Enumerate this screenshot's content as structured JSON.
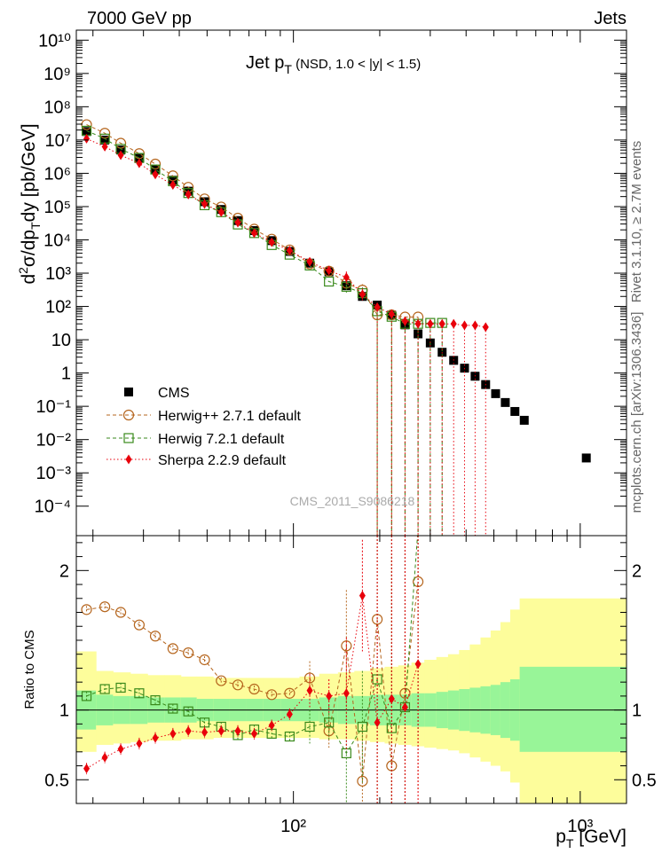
{
  "header": {
    "left": "7000 GeV pp",
    "right": "Jets"
  },
  "side_labels": {
    "rivet": "Rivet 3.1.10, ≥ 2.7M events",
    "mcplots": "mcplots.cern.ch [arXiv:1306.3436]"
  },
  "watermark": "CMS_2011_S9086218",
  "main_title": {
    "main": "Jet p",
    "sub": "T",
    "tail": " (NSD, 1.0 < |y| < 1.5)"
  },
  "colors": {
    "cms": "#000000",
    "herwigpp": "#b5651d",
    "herwig7": "#3a8a1c",
    "sherpa": "#e8000b",
    "band_inner": "#98f598",
    "band_outer": "#fdfd9b"
  },
  "chart_data": [
    {
      "type": "scatter",
      "panel": "main",
      "ylabel": "d²σ/dp_T dy [pb/GeV]",
      "xscale": "log",
      "yscale": "log",
      "xlim": [
        17.5,
        1450
      ],
      "ylim": [
        1.3e-05,
        20000000000
      ],
      "legend": {
        "position": "center-left",
        "entries": [
          "CMS",
          "Herwig++ 2.7.1 default",
          "Herwig 7.2.1 default",
          "Sherpa 2.2.9 default"
        ]
      },
      "series": [
        {
          "name": "CMS",
          "marker": "filled-square",
          "x": [
            19,
            22,
            25,
            29,
            33,
            38,
            43,
            49,
            56,
            64,
            73,
            84,
            97,
            114,
            133,
            153,
            174,
            196,
            220,
            245,
            272,
            300,
            330,
            362,
            395,
            430,
            468,
            507,
            548,
            592,
            638,
            1050
          ],
          "y": [
            18000000,
            10000000,
            5000000,
            2800000,
            1300000,
            620000,
            290000,
            140000,
            82000,
            38000,
            19000,
            9500,
            4500,
            2000,
            1100,
            420,
            200,
            110,
            55,
            28,
            15,
            8,
            4.2,
            2.4,
            1.4,
            0.8,
            0.45,
            0.24,
            0.13,
            0.07,
            0.038,
            0.0028
          ]
        },
        {
          "name": "Herwig++ 2.7.1 default",
          "marker": "open-circle",
          "x": [
            19,
            22,
            25,
            29,
            33,
            38,
            43,
            49,
            56,
            64,
            73,
            84,
            97,
            114,
            133,
            153,
            174,
            196,
            220,
            245,
            272
          ],
          "y": [
            29000000,
            16000000,
            8000000,
            3900000,
            1900000,
            840000,
            380000,
            170000,
            97000,
            45000,
            21000,
            10500,
            5000,
            1900,
            1150,
            500,
            310,
            56,
            56,
            48,
            48
          ]
        },
        {
          "name": "Herwig 7.2.1 default",
          "marker": "open-square",
          "x": [
            19,
            22,
            25,
            29,
            33,
            38,
            43,
            49,
            56,
            64,
            73,
            84,
            97,
            114,
            133,
            153,
            174,
            196,
            220,
            245,
            272,
            300,
            330
          ],
          "y": [
            19000000,
            11000000,
            5400000,
            2900000,
            1300000,
            580000,
            255000,
            110000,
            68000,
            29000,
            16000,
            7000,
            3600,
            1700,
            560,
            390,
            250,
            72,
            49,
            30,
            30,
            32,
            32
          ]
        },
        {
          "name": "Sherpa 2.2.9 default",
          "marker": "filled-diamond",
          "x": [
            19,
            22,
            25,
            29,
            33,
            38,
            43,
            49,
            56,
            64,
            73,
            84,
            97,
            114,
            133,
            153,
            174,
            196,
            220,
            245,
            272,
            300,
            330,
            362,
            395,
            430,
            468
          ],
          "y": [
            11000000,
            6300000,
            3500000,
            2000000,
            920000,
            450000,
            230000,
            120000,
            68000,
            33000,
            16000,
            8500,
            4800,
            2200,
            1200,
            750,
            230,
            95,
            59,
            36,
            30,
            30,
            30,
            30,
            27,
            27,
            24
          ]
        }
      ],
      "yticks": [
        "10⁻⁴",
        "10⁻³",
        "10⁻²",
        "10⁻¹",
        "1",
        "10",
        "10²",
        "10³",
        "10⁴",
        "10⁵",
        "10⁶",
        "10⁷",
        "10⁸",
        "10⁹",
        "10¹⁰"
      ]
    },
    {
      "type": "line",
      "panel": "ratio",
      "ylabel": "Ratio to CMS",
      "xlabel": "p_T [GeV]",
      "xscale": "log",
      "xlim": [
        17.5,
        1450
      ],
      "ylim": [
        0.33,
        2.25
      ],
      "yticks": [
        "0.5",
        "1",
        "2"
      ],
      "xticks": [
        "10²",
        "10³"
      ],
      "series": [
        {
          "name": "Herwig++ 2.7.1 default",
          "marker": "open-circle",
          "x": [
            19,
            22,
            25,
            29,
            33,
            38,
            43,
            49,
            56,
            64,
            73,
            84,
            97,
            114,
            133,
            153,
            174,
            196,
            220,
            245,
            272
          ],
          "y": [
            1.72,
            1.74,
            1.7,
            1.61,
            1.53,
            1.44,
            1.41,
            1.36,
            1.21,
            1.18,
            1.15,
            1.11,
            1.12,
            1.23,
            0.85,
            1.46,
            0.49,
            1.65,
            0.6,
            1.12,
            1.92
          ]
        },
        {
          "name": "Herwig 7.2.1 default",
          "marker": "open-square",
          "x": [
            19,
            22,
            25,
            29,
            33,
            38,
            43,
            49,
            56,
            64,
            73,
            84,
            97,
            114,
            133,
            153,
            174,
            196,
            220,
            245,
            272
          ],
          "y": [
            1.1,
            1.15,
            1.16,
            1.12,
            1.07,
            1.01,
            0.99,
            0.91,
            0.88,
            0.82,
            0.86,
            0.83,
            0.81,
            0.88,
            0.91,
            0.69,
            0.88,
            1.22,
            0.87,
            1.02,
            2.3
          ]
        },
        {
          "name": "Sherpa 2.2.9 default",
          "marker": "filled-diamond",
          "x": [
            19,
            22,
            25,
            29,
            33,
            38,
            43,
            49,
            56,
            64,
            73,
            84,
            97,
            114,
            133,
            153,
            174,
            196,
            220,
            245,
            272
          ],
          "y": [
            0.58,
            0.66,
            0.72,
            0.76,
            0.8,
            0.83,
            0.85,
            0.84,
            0.85,
            0.85,
            0.83,
            0.89,
            0.97,
            1.14,
            1.1,
            1.12,
            1.82,
            0.91,
            1.08,
            1.02,
            1.33
          ]
        }
      ],
      "bands": {
        "edges": [
          17.5,
          20.5,
          23.5,
          27,
          31,
          35.5,
          40.5,
          46,
          52.5,
          60,
          68.5,
          78.5,
          90.5,
          105,
          123,
          143,
          163,
          185,
          208,
          232,
          258,
          286,
          315,
          346,
          378,
          412,
          449,
          487,
          527,
          570,
          615,
          1450
        ],
        "inner_lo": [
          0.86,
          0.89,
          0.9,
          0.9,
          0.91,
          0.91,
          0.91,
          0.92,
          0.92,
          0.92,
          0.92,
          0.92,
          0.92,
          0.92,
          0.91,
          0.9,
          0.9,
          0.89,
          0.89,
          0.89,
          0.88,
          0.88,
          0.87,
          0.86,
          0.85,
          0.84,
          0.83,
          0.82,
          0.8,
          0.78,
          0.7
        ],
        "inner_hi": [
          1.14,
          1.11,
          1.1,
          1.1,
          1.09,
          1.09,
          1.09,
          1.08,
          1.08,
          1.08,
          1.08,
          1.08,
          1.08,
          1.08,
          1.09,
          1.1,
          1.1,
          1.11,
          1.11,
          1.11,
          1.12,
          1.12,
          1.13,
          1.14,
          1.15,
          1.16,
          1.17,
          1.18,
          1.2,
          1.22,
          1.31
        ],
        "outer_lo": [
          0.7,
          0.75,
          0.76,
          0.77,
          0.78,
          0.78,
          0.79,
          0.79,
          0.8,
          0.8,
          0.8,
          0.8,
          0.8,
          0.8,
          0.79,
          0.79,
          0.78,
          0.77,
          0.76,
          0.75,
          0.74,
          0.73,
          0.72,
          0.71,
          0.69,
          0.66,
          0.63,
          0.6,
          0.56,
          0.48,
          0.3
        ],
        "outer_hi": [
          1.42,
          1.28,
          1.27,
          1.26,
          1.25,
          1.25,
          1.24,
          1.24,
          1.23,
          1.23,
          1.23,
          1.23,
          1.23,
          1.24,
          1.26,
          1.27,
          1.28,
          1.3,
          1.31,
          1.32,
          1.34,
          1.36,
          1.38,
          1.4,
          1.43,
          1.47,
          1.52,
          1.57,
          1.63,
          1.72,
          1.8
        ]
      }
    }
  ]
}
